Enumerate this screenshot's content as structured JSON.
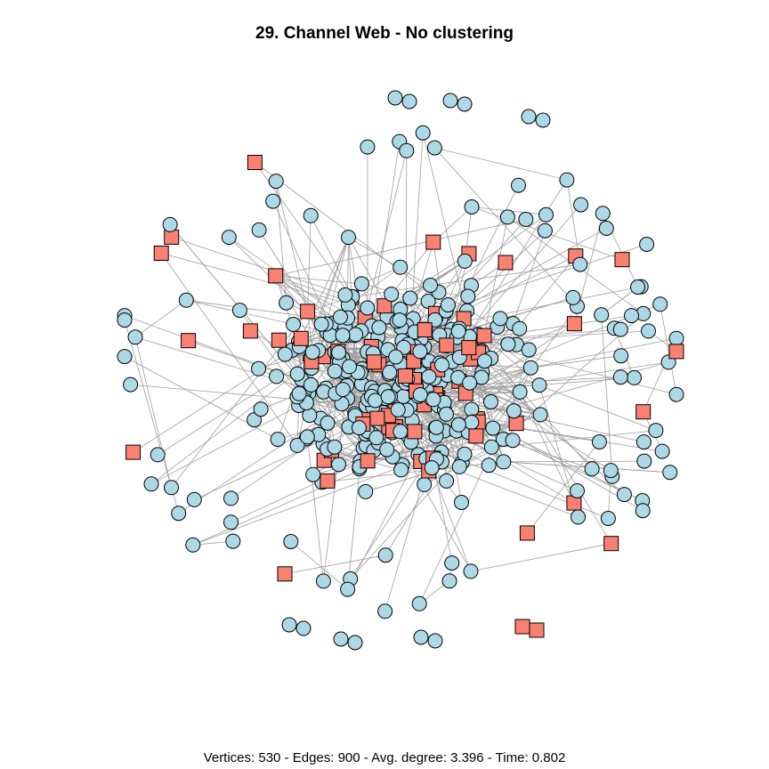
{
  "title": "29. Channel Web - No clustering",
  "footer": "Vertices: 530 - Edges: 900 - Avg. degree: 3.396 - Time: 0.802",
  "colors": {
    "circle_fill": "#add8e6",
    "square_fill": "#fa8072",
    "edge": "#9e9e9e",
    "stroke": "#000000"
  },
  "node_shapes": [
    "circle",
    "square"
  ]
}
